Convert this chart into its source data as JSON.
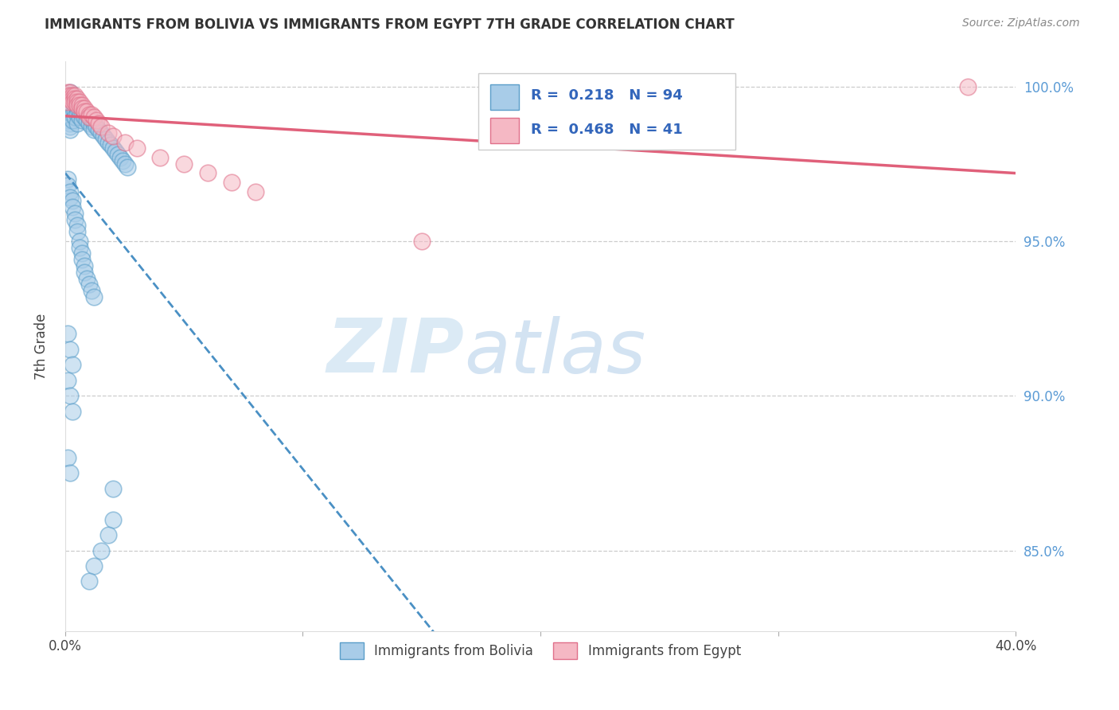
{
  "title": "IMMIGRANTS FROM BOLIVIA VS IMMIGRANTS FROM EGYPT 7TH GRADE CORRELATION CHART",
  "source": "Source: ZipAtlas.com",
  "ylabel": "7th Grade",
  "right_yticks": [
    0.85,
    0.9,
    0.95,
    1.0
  ],
  "right_yticklabels": [
    "85.0%",
    "90.0%",
    "95.0%",
    "100.0%"
  ],
  "watermark_zip": "ZIP",
  "watermark_atlas": "atlas",
  "legend_bolivia": "Immigrants from Bolivia",
  "legend_egypt": "Immigrants from Egypt",
  "R_bolivia": "0.218",
  "N_bolivia": "94",
  "R_egypt": "0.468",
  "N_egypt": "41",
  "color_bolivia_fill": "#a8cce8",
  "color_bolivia_edge": "#5a9ec9",
  "color_egypt_fill": "#f5b8c4",
  "color_egypt_edge": "#e0708a",
  "color_bolivia_line": "#4a90c4",
  "color_egypt_line": "#e0607a",
  "xlim": [
    0.0,
    0.4
  ],
  "ylim": [
    0.824,
    1.008
  ],
  "bolivia_x": [
    0.001,
    0.001,
    0.001,
    0.001,
    0.001,
    0.001,
    0.001,
    0.001,
    0.001,
    0.002,
    0.002,
    0.002,
    0.002,
    0.002,
    0.002,
    0.002,
    0.002,
    0.003,
    0.003,
    0.003,
    0.003,
    0.003,
    0.004,
    0.004,
    0.004,
    0.004,
    0.005,
    0.005,
    0.005,
    0.005,
    0.006,
    0.006,
    0.006,
    0.007,
    0.007,
    0.007,
    0.008,
    0.008,
    0.009,
    0.009,
    0.01,
    0.01,
    0.011,
    0.011,
    0.012,
    0.012,
    0.013,
    0.014,
    0.015,
    0.016,
    0.017,
    0.018,
    0.019,
    0.02,
    0.021,
    0.022,
    0.023,
    0.024,
    0.025,
    0.026,
    0.001,
    0.001,
    0.002,
    0.002,
    0.003,
    0.003,
    0.004,
    0.004,
    0.005,
    0.005,
    0.006,
    0.006,
    0.007,
    0.007,
    0.008,
    0.008,
    0.009,
    0.01,
    0.011,
    0.012,
    0.001,
    0.002,
    0.003,
    0.001,
    0.002,
    0.003,
    0.001,
    0.002,
    0.02,
    0.02,
    0.018,
    0.015,
    0.012,
    0.01
  ],
  "bolivia_y": [
    0.997,
    0.996,
    0.995,
    0.994,
    0.993,
    0.992,
    0.991,
    0.99,
    0.989,
    0.998,
    0.996,
    0.994,
    0.992,
    0.99,
    0.988,
    0.987,
    0.986,
    0.997,
    0.995,
    0.993,
    0.991,
    0.989,
    0.996,
    0.994,
    0.992,
    0.99,
    0.995,
    0.993,
    0.991,
    0.988,
    0.994,
    0.992,
    0.99,
    0.993,
    0.991,
    0.989,
    0.992,
    0.99,
    0.991,
    0.989,
    0.99,
    0.988,
    0.989,
    0.987,
    0.988,
    0.986,
    0.987,
    0.986,
    0.985,
    0.984,
    0.983,
    0.982,
    0.981,
    0.98,
    0.979,
    0.978,
    0.977,
    0.976,
    0.975,
    0.974,
    0.97,
    0.968,
    0.966,
    0.964,
    0.963,
    0.961,
    0.959,
    0.957,
    0.955,
    0.953,
    0.95,
    0.948,
    0.946,
    0.944,
    0.942,
    0.94,
    0.938,
    0.936,
    0.934,
    0.932,
    0.92,
    0.915,
    0.91,
    0.905,
    0.9,
    0.895,
    0.88,
    0.875,
    0.87,
    0.86,
    0.855,
    0.85,
    0.845,
    0.84
  ],
  "egypt_x": [
    0.001,
    0.001,
    0.001,
    0.001,
    0.002,
    0.002,
    0.002,
    0.003,
    0.003,
    0.003,
    0.004,
    0.004,
    0.004,
    0.005,
    0.005,
    0.005,
    0.006,
    0.006,
    0.007,
    0.007,
    0.008,
    0.008,
    0.009,
    0.01,
    0.01,
    0.011,
    0.012,
    0.013,
    0.014,
    0.015,
    0.018,
    0.02,
    0.025,
    0.03,
    0.04,
    0.05,
    0.06,
    0.07,
    0.08,
    0.15,
    0.38
  ],
  "egypt_y": [
    0.998,
    0.997,
    0.996,
    0.995,
    0.998,
    0.997,
    0.996,
    0.997,
    0.996,
    0.995,
    0.997,
    0.996,
    0.995,
    0.996,
    0.995,
    0.994,
    0.995,
    0.994,
    0.994,
    0.993,
    0.993,
    0.992,
    0.992,
    0.991,
    0.99,
    0.991,
    0.99,
    0.989,
    0.988,
    0.987,
    0.985,
    0.984,
    0.982,
    0.98,
    0.977,
    0.975,
    0.972,
    0.969,
    0.966,
    0.95,
    1.0
  ]
}
